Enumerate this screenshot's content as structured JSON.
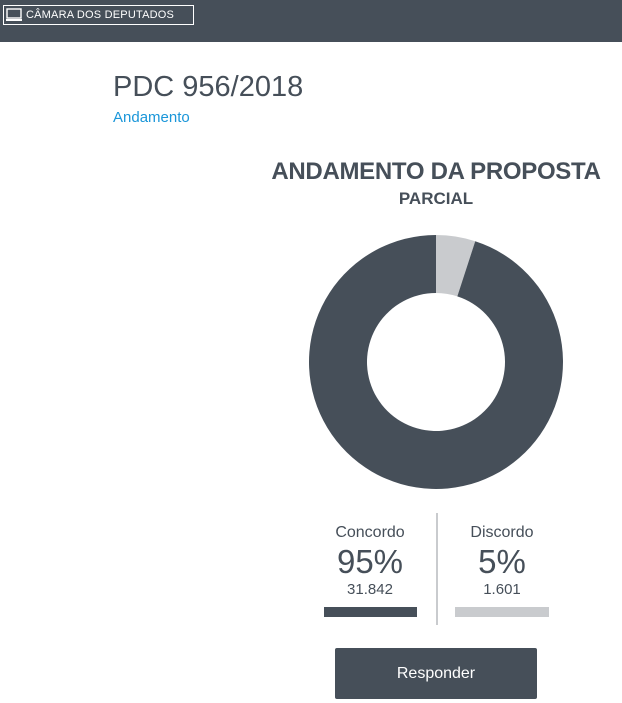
{
  "header": {
    "logo_text": "CÂMARA DOS DEPUTADOS",
    "logo_icon": "monitor-icon",
    "background": "#464f59"
  },
  "proposal": {
    "title": "PDC 956/2018",
    "link_label": "Andamento"
  },
  "panel": {
    "title": "ANDAMENTO DA PROPOSTA",
    "subtitle": "PARCIAL"
  },
  "chart_data": {
    "type": "pie",
    "donut": true,
    "categories": [
      "Concordo",
      "Discordo"
    ],
    "values": [
      95,
      5
    ],
    "colors": [
      "#464f59",
      "#c9cbce"
    ],
    "counts": [
      "31.842",
      "1.601"
    ],
    "title": "ANDAMENTO DA PROPOSTA",
    "subtitle": "PARCIAL"
  },
  "results": {
    "agree": {
      "label": "Concordo",
      "percent": "95%",
      "count": "31.842",
      "color": "#464f59"
    },
    "disagree": {
      "label": "Discordo",
      "percent": "5%",
      "count": "1.601",
      "color": "#c9cbce"
    }
  },
  "actions": {
    "respond_label": "Responder"
  },
  "colors": {
    "link": "#1a96d9",
    "text": "#464f59",
    "accent_dark": "#464f59",
    "accent_light": "#c9cbce"
  }
}
